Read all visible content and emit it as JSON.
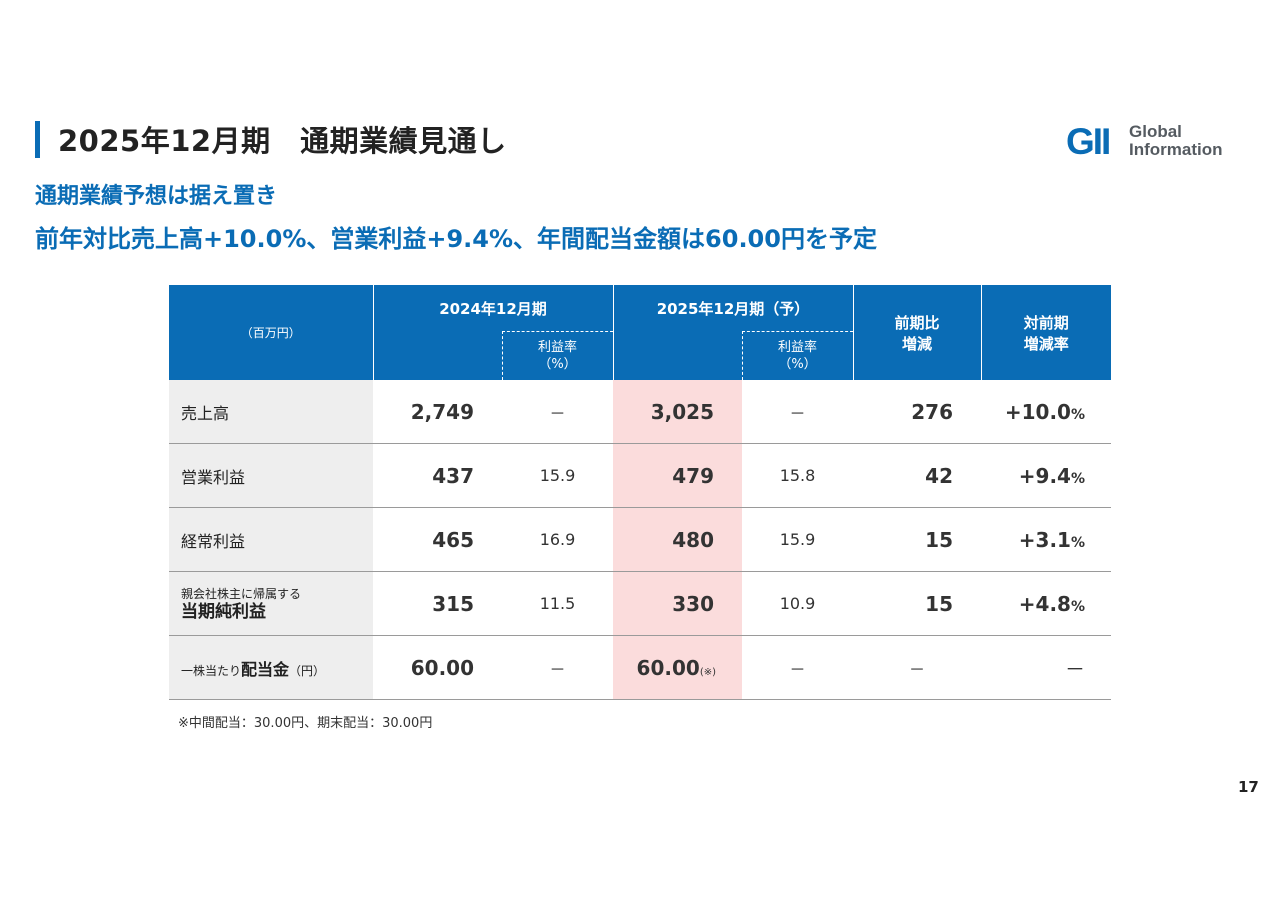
{
  "header": {
    "title": "2025年12月期　通期業績見通し",
    "logo_mark": "GII",
    "logo_line1": "Global",
    "logo_line2": "Information",
    "brand_color": "#0a6cb5"
  },
  "subtitle": {
    "line1": "通期業績予想は据え置き",
    "line2": "前年対比売上高+10.0%、営業利益+9.4%、年間配当金額は60.00円を予定"
  },
  "table": {
    "unit_label": "（百万円）",
    "col_fy2024": "2024年12月期",
    "col_fy2025": "2025年12月期（予）",
    "col_rate_label": "利益率",
    "col_rate_unit": "（%）",
    "col_yoy_diff_line1": "前期比",
    "col_yoy_diff_line2": "増減",
    "col_yoy_rate_line1": "対前期",
    "col_yoy_rate_line2": "増減率",
    "highlight_color": "#fbdcdc",
    "rows": [
      {
        "label": "売上高",
        "fy2024": "2,749",
        "fy2024_rate": "－",
        "fy2025": "3,025",
        "fy2025_rate": "－",
        "diff": "276",
        "yoy_rate": "+10.0",
        "yoy_unit": "%"
      },
      {
        "label": "営業利益",
        "fy2024": "437",
        "fy2024_rate": "15.9",
        "fy2025": "479",
        "fy2025_rate": "15.8",
        "diff": "42",
        "yoy_rate": "+9.4",
        "yoy_unit": "%"
      },
      {
        "label": "経常利益",
        "fy2024": "465",
        "fy2024_rate": "16.9",
        "fy2025": "480",
        "fy2025_rate": "15.9",
        "diff": "15",
        "yoy_rate": "+3.1",
        "yoy_unit": "%"
      },
      {
        "label_small": "親会社株主に帰属する",
        "label": "当期純利益",
        "fy2024": "315",
        "fy2024_rate": "11.5",
        "fy2025": "330",
        "fy2025_rate": "10.9",
        "diff": "15",
        "yoy_rate": "+4.8",
        "yoy_unit": "%"
      },
      {
        "label_prefix": "一株当たり",
        "label": "配当金",
        "label_suffix": "（円）",
        "fy2024": "60.00",
        "fy2024_rate": "－",
        "fy2025": "60.00",
        "fy2025_note": "(※)",
        "fy2025_rate": "－",
        "diff": "－",
        "yoy_rate": "－"
      }
    ]
  },
  "footnote": "※中間配当：30.00円、期末配当：30.00円",
  "page_number": "17"
}
